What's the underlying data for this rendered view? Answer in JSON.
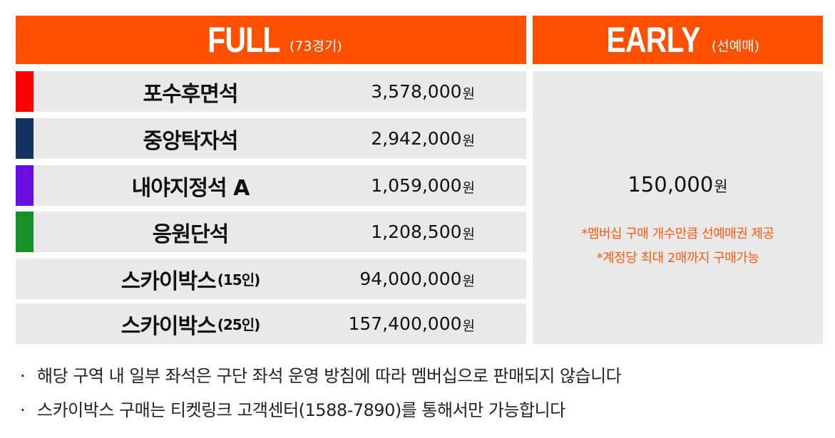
{
  "header": {
    "full_title": "FULL",
    "full_sub": "(73경기)",
    "early_title": "EARLY",
    "early_sub": "(선예매)"
  },
  "colors": {
    "accent": "#ff5000",
    "row_bg": "#e9e9e9",
    "early_note": "#ff5a10"
  },
  "rows": [
    {
      "name": "포수후면석",
      "sub": "",
      "price": "3,578,000",
      "unit": "원",
      "color": "#ff0000"
    },
    {
      "name": "중앙탁자석",
      "sub": "",
      "price": "2,942,000",
      "unit": "원",
      "color": "#14325f"
    },
    {
      "name": "내야지정석 A",
      "sub": "",
      "price": "1,059,000",
      "unit": "원",
      "color": "#6a0de0"
    },
    {
      "name": "응원단석",
      "sub": "",
      "price": "1,208,500",
      "unit": "원",
      "color": "#17902a"
    },
    {
      "name": "스카이박스",
      "sub": "(15인)",
      "price": "94,000,000",
      "unit": "원",
      "color": ""
    },
    {
      "name": "스카이박스",
      "sub": "(25인)",
      "price": "157,400,000",
      "unit": "원",
      "color": ""
    }
  ],
  "early": {
    "price": "150,000",
    "unit": "원",
    "notes": [
      "*멤버십 구매 개수만큼 선예매권 제공",
      "*계정당 최대 2매까지 구매가능"
    ]
  },
  "footnotes": [
    {
      "bullet": "·",
      "text": "해당 구역 내 일부 좌석은 구단 좌석 운영 방침에 따라 멤버십으로 판매되지 않습니다"
    },
    {
      "bullet": "·",
      "text": "스카이박스 구매는 티켓링크 고객센터(1588-7890)를 통해서만 가능합니다"
    }
  ]
}
